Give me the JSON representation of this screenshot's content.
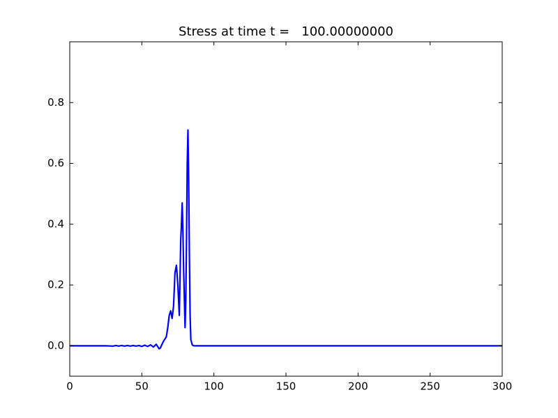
{
  "chart_data": {
    "type": "line",
    "title": "Stress at time t =   100.00000000",
    "x": [
      0,
      25,
      30,
      32,
      34,
      36,
      38,
      40,
      42,
      44,
      46,
      48,
      50,
      52,
      54,
      56,
      58,
      60,
      62,
      63,
      64,
      65,
      66,
      67,
      68,
      69,
      70,
      71,
      72,
      73,
      74,
      75,
      76,
      77,
      77.5,
      78,
      78.5,
      79,
      80,
      80.5,
      81,
      81.5,
      82,
      82.5,
      83,
      83.5,
      84,
      85,
      86,
      90,
      300
    ],
    "series": [
      {
        "color": "#0000ff",
        "values": [
          0,
          0,
          -0.001,
          0.001,
          -0.001,
          0.001,
          -0.001,
          0.001,
          -0.001,
          0.001,
          -0.001,
          0.001,
          -0.002,
          0.002,
          -0.002,
          0.003,
          -0.004,
          0.005,
          -0.01,
          -0.006,
          0.005,
          0.015,
          0.022,
          0.03,
          0.06,
          0.1,
          0.115,
          0.09,
          0.13,
          0.24,
          0.265,
          0.2,
          0.1,
          0.35,
          0.4,
          0.47,
          0.38,
          0.25,
          0.06,
          0.15,
          0.35,
          0.6,
          0.71,
          0.55,
          0.3,
          0.1,
          0.02,
          0.003,
          0,
          0,
          0
        ]
      }
    ],
    "xlim": [
      0,
      300
    ],
    "xticks": [
      0,
      50,
      100,
      150,
      200,
      250,
      300
    ],
    "ylim": [
      -0.1,
      1.0
    ],
    "yticks": [
      {
        "value": 0,
        "label": "0.0"
      },
      0.2,
      0.4,
      0.6,
      0.8
    ]
  }
}
